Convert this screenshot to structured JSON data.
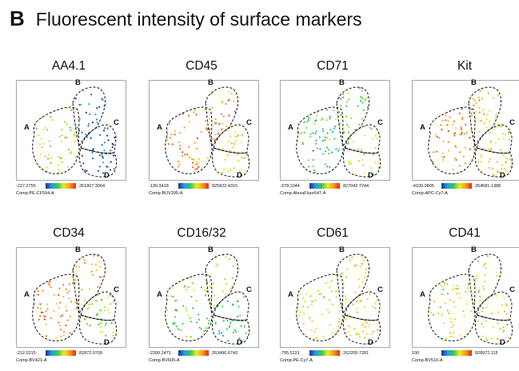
{
  "figure": {
    "panel_letter": "B",
    "title": "Fluorescent intensity of surface markers"
  },
  "chart_data": [
    {
      "type": "scatter",
      "title": "AA4.1",
      "channel": "Comp-PE-CF594-A",
      "scale": {
        "min": "-227.2755",
        "max": "261807.3064",
        "colors": [
          "#1a2f9e",
          "#1fa0e0",
          "#3ec64a",
          "#f2e824",
          "#f59a1e",
          "#e02b1b"
        ]
      },
      "gates": [
        "A",
        "B",
        "C",
        "D"
      ],
      "level": {
        "A": 0.55,
        "B": 0.15,
        "C": 0.06,
        "D": 0.05
      }
    },
    {
      "type": "scatter",
      "title": "CD45",
      "channel": "Comp-BUV395-A",
      "scale": {
        "min": "-130.3418",
        "max": "825822.4315",
        "colors": [
          "#1a2f9e",
          "#1fa0e0",
          "#3ec64a",
          "#f2e824",
          "#f59a1e",
          "#e02b1b"
        ]
      },
      "gates": [
        "A",
        "B",
        "C",
        "D"
      ],
      "level": {
        "A": 0.8,
        "B": 0.8,
        "C": 0.62,
        "D": 0.6
      }
    },
    {
      "type": "scatter",
      "title": "CD71",
      "channel": "Comp-AlexaFluor647-A",
      "scale": {
        "min": "-378.1044",
        "max": "827042.7244",
        "colors": [
          "#1a2f9e",
          "#1fa0e0",
          "#3ec64a",
          "#f2e824",
          "#f59a1e",
          "#e02b1b"
        ]
      },
      "gates": [
        "A",
        "B",
        "C",
        "D"
      ],
      "level": {
        "A": 0.4,
        "B": 0.45,
        "C": 0.55,
        "D": 0.55
      }
    },
    {
      "type": "scatter",
      "title": "Kit",
      "channel": "Comp-APC-Cy7-A",
      "scale": {
        "min": "-4109.0805",
        "max": "264581.1388",
        "colors": [
          "#1a2f9e",
          "#1fa0e0",
          "#3ec64a",
          "#f2e824",
          "#f59a1e",
          "#e02b1b"
        ]
      },
      "gates": [
        "A",
        "B",
        "C",
        "D"
      ],
      "level": {
        "A": 0.8,
        "B": 0.68,
        "C": 0.62,
        "D": 0.62
      }
    },
    {
      "type": "scatter",
      "title": "CD34",
      "channel": "Comp-BV421-A",
      "scale": {
        "min": "-212.0215",
        "max": "82872.0709",
        "colors": [
          "#1a2f9e",
          "#1fa0e0",
          "#3ec64a",
          "#f2e824",
          "#f59a1e",
          "#e02b1b"
        ]
      },
      "gates": [
        "A",
        "B",
        "C",
        "D"
      ],
      "level": {
        "A": 0.82,
        "B": 0.75,
        "C": 0.52,
        "D": 0.5
      }
    },
    {
      "type": "scatter",
      "title": "CD16/32",
      "channel": "Comp-BV605-A",
      "scale": {
        "min": "-2399.2471",
        "max": "263496.6743",
        "colors": [
          "#1a2f9e",
          "#1fa0e0",
          "#3ec64a",
          "#f2e824",
          "#f59a1e",
          "#e02b1b"
        ]
      },
      "gates": [
        "A",
        "B",
        "C",
        "D"
      ],
      "level": {
        "A": 0.45,
        "B": 0.6,
        "C": 0.38,
        "D": 0.35
      }
    },
    {
      "type": "scatter",
      "title": "CD61",
      "channel": "Comp-PE-Cy7-A",
      "scale": {
        "min": "-795.5221",
        "max": "262205.7281",
        "colors": [
          "#1a2f9e",
          "#1fa0e0",
          "#3ec64a",
          "#f2e824",
          "#f59a1e",
          "#e02b1b"
        ]
      },
      "gates": [
        "A",
        "B",
        "C",
        "D"
      ],
      "level": {
        "A": 0.58,
        "B": 0.6,
        "C": 0.62,
        "D": 0.62
      }
    },
    {
      "type": "scatter",
      "title": "CD41",
      "channel": "Comp-BV510-A",
      "scale": {
        "min": "100",
        "max": "828972.115",
        "colors": [
          "#1a2f9e",
          "#1fa0e0",
          "#3ec64a",
          "#f2e824",
          "#f59a1e",
          "#e02b1b"
        ]
      },
      "gates": [
        "A",
        "B",
        "C",
        "D"
      ],
      "level": {
        "A": 0.58,
        "B": 0.6,
        "C": 0.6,
        "D": 0.6
      }
    }
  ]
}
